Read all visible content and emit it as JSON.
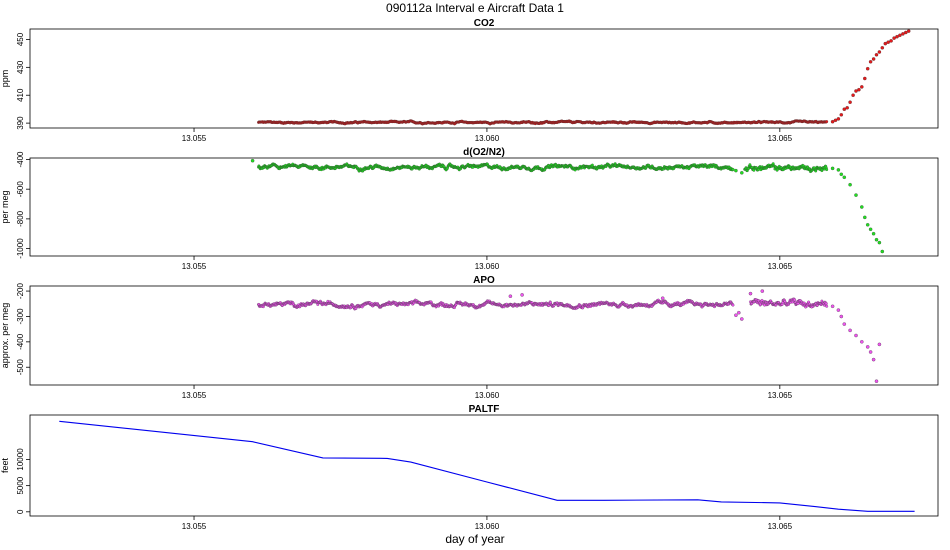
{
  "figure": {
    "title": "090112a   Interval e Aircraft Data 1",
    "xlabel": "day of year"
  },
  "chart_data": [
    {
      "type": "scatter",
      "title": "CO2",
      "xlabel": "",
      "ylabel": "ppm",
      "xlim": [
        13.0522,
        13.0677
      ],
      "ylim": [
        386.5,
        457.5
      ],
      "xticks": [
        13.055,
        13.06,
        13.065
      ],
      "xticklabels": [
        "13.055",
        "13.060",
        "13.065"
      ],
      "yticks": [
        390,
        410,
        430,
        450
      ],
      "yticklabels": [
        "390",
        "410",
        "430",
        "450"
      ],
      "series": [
        {
          "color": "#e41a1c",
          "segments": [
            {
              "x_start": 13.0561,
              "x_end": 13.0658,
              "base": 390.5,
              "noise": 0.6
            }
          ],
          "points": [
            [
              13.0659,
              391
            ],
            [
              13.06595,
              392
            ],
            [
              13.066,
              393
            ],
            [
              13.06605,
              396
            ],
            [
              13.0661,
              400
            ],
            [
              13.06615,
              401
            ],
            [
              13.0662,
              405
            ],
            [
              13.06625,
              410
            ],
            [
              13.0663,
              413
            ],
            [
              13.06635,
              414
            ],
            [
              13.0664,
              416
            ],
            [
              13.06645,
              422
            ],
            [
              13.0665,
              429
            ],
            [
              13.06655,
              434
            ],
            [
              13.0666,
              436
            ],
            [
              13.06665,
              439
            ],
            [
              13.0667,
              441
            ],
            [
              13.06675,
              444
            ],
            [
              13.0668,
              447
            ],
            [
              13.06685,
              448
            ],
            [
              13.0669,
              449
            ],
            [
              13.06695,
              451
            ],
            [
              13.067,
              452
            ],
            [
              13.06705,
              453
            ],
            [
              13.0671,
              454
            ],
            [
              13.06715,
              455
            ],
            [
              13.0672,
              456
            ]
          ]
        }
      ]
    },
    {
      "type": "scatter",
      "title": "d(O2/N2)",
      "xlabel": "",
      "ylabel": "per meg",
      "xlim": [
        13.0522,
        13.0677
      ],
      "ylim": [
        -1050,
        -390
      ],
      "xticks": [
        13.055,
        13.06,
        13.065
      ],
      "xticklabels": [
        "13.055",
        "13.060",
        "13.065"
      ],
      "yticks": [
        -400,
        -600,
        -800,
        -1000
      ],
      "yticklabels": [
        "-400",
        "-600",
        "-800",
        "-1000"
      ],
      "series": [
        {
          "color": "#22dd22",
          "segments": [
            {
              "x_start": 13.0561,
              "x_end": 13.0642,
              "base": -450,
              "noise": 14
            },
            {
              "x_start": 13.0644,
              "x_end": 13.0658,
              "base": -458,
              "noise": 20
            }
          ],
          "points": [
            [
              13.056,
              -408
            ],
            [
              13.06425,
              -475
            ],
            [
              13.06435,
              -490
            ],
            [
              13.0659,
              -460
            ],
            [
              13.066,
              -470
            ],
            [
              13.06605,
              -500
            ],
            [
              13.0661,
              -520
            ],
            [
              13.0662,
              -570
            ],
            [
              13.0663,
              -640
            ],
            [
              13.0664,
              -720
            ],
            [
              13.06645,
              -790
            ],
            [
              13.0665,
              -840
            ],
            [
              13.06655,
              -870
            ],
            [
              13.0666,
              -900
            ],
            [
              13.06665,
              -940
            ],
            [
              13.0667,
              -960
            ],
            [
              13.06675,
              -1020
            ]
          ]
        }
      ]
    },
    {
      "type": "scatter",
      "title": "APO",
      "xlabel": "",
      "ylabel": "approx. per meg",
      "xlim": [
        13.0522,
        13.0677
      ],
      "ylim": [
        -570,
        -180
      ],
      "xticks": [
        13.055,
        13.06,
        13.065
      ],
      "xticklabels": [
        "13.055",
        "13.060",
        "13.065"
      ],
      "yticks": [
        -200,
        -300,
        -400,
        -500
      ],
      "yticklabels": [
        "-200",
        "-300",
        "-400",
        "-500"
      ],
      "series": [
        {
          "color": "#ee55ee",
          "segments": [
            {
              "x_start": 13.0561,
              "x_end": 13.0642,
              "base": -252,
              "noise": 9
            },
            {
              "x_start": 13.0645,
              "x_end": 13.0658,
              "base": -250,
              "noise": 16
            }
          ],
          "points": [
            [
              13.0604,
              -220
            ],
            [
              13.0606,
              -215
            ],
            [
              13.063,
              -228
            ],
            [
              13.06425,
              -295
            ],
            [
              13.06435,
              -310
            ],
            [
              13.0643,
              -285
            ],
            [
              13.0645,
              -210
            ],
            [
              13.0647,
              -200
            ],
            [
              13.0659,
              -260
            ],
            [
              13.066,
              -275
            ],
            [
              13.06605,
              -300
            ],
            [
              13.0661,
              -330
            ],
            [
              13.0662,
              -355
            ],
            [
              13.0663,
              -375
            ],
            [
              13.0664,
              -400
            ],
            [
              13.0665,
              -420
            ],
            [
              13.06655,
              -440
            ],
            [
              13.0666,
              -470
            ],
            [
              13.06665,
              -555
            ],
            [
              13.0667,
              -410
            ]
          ]
        }
      ]
    },
    {
      "type": "line",
      "title": "PALTF",
      "xlabel": "day of year",
      "ylabel": "feet",
      "xlim": [
        13.0522,
        13.0677
      ],
      "ylim": [
        -800,
        18500
      ],
      "xticks": [
        13.055,
        13.06,
        13.065
      ],
      "xticklabels": [
        "13.055",
        "13.060",
        "13.065"
      ],
      "yticks": [
        0,
        5000,
        10000
      ],
      "yticklabels": [
        "0",
        "5000",
        "10000"
      ],
      "series": [
        {
          "color": "#0000ee",
          "x": [
            13.0527,
            13.056,
            13.0572,
            13.0583,
            13.0587,
            13.06,
            13.0612,
            13.062,
            13.0636,
            13.064,
            13.065,
            13.0656,
            13.066,
            13.0665,
            13.0673
          ],
          "y": [
            17300,
            13400,
            10300,
            10200,
            9500,
            5700,
            2200,
            2200,
            2300,
            1900,
            1700,
            1000,
            500,
            100,
            100
          ]
        }
      ]
    }
  ]
}
